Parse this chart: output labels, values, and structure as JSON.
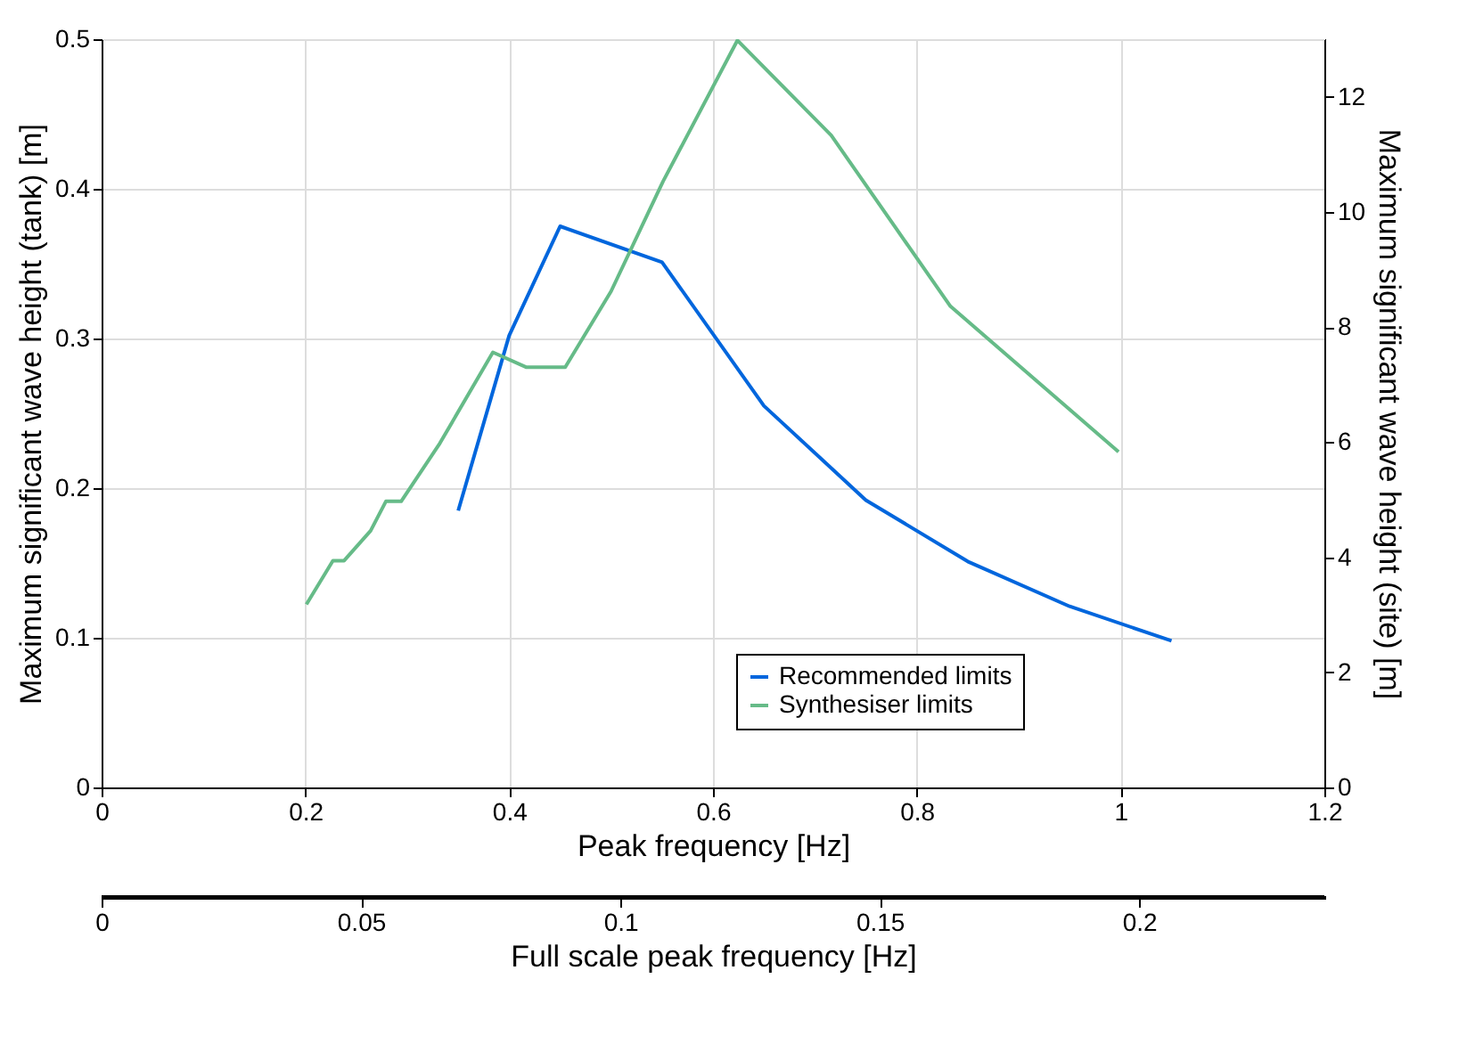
{
  "chart_data": {
    "type": "line",
    "xlabel": "Peak frequency [Hz]",
    "ylabel": "Maximum significant wave height (tank) [m]",
    "y2label": "Maximum significant wave height (site) [m]",
    "x2label": "Full scale peak frequency [Hz]",
    "xlim": [
      0,
      1.2
    ],
    "xticks": [
      0,
      0.2,
      0.4,
      0.6,
      0.8,
      1,
      1.2
    ],
    "ylim": [
      0,
      0.5
    ],
    "yticks": [
      0,
      0.1,
      0.2,
      0.3,
      0.4,
      0.5
    ],
    "y2lim": [
      0,
      13
    ],
    "y2ticks": [
      0,
      2,
      4,
      6,
      8,
      10,
      12
    ],
    "x2lim": [
      0,
      0.2357
    ],
    "x2ticks": [
      0,
      0.05,
      0.1,
      0.15,
      0.2
    ],
    "grid": true,
    "legend": "bottom right",
    "line_style": "solid",
    "marker": "none",
    "series": [
      {
        "name": "Recommended limits",
        "color": "#0066dd",
        "axis": "y",
        "x": [
          0.35,
          0.4,
          0.45,
          0.55,
          0.65,
          0.75,
          0.85,
          0.95,
          1.05
        ],
        "values": [
          0.185,
          0.302,
          0.375,
          0.351,
          0.255,
          0.192,
          0.151,
          0.121,
          0.098
        ]
      },
      {
        "name": "Synthesiser limits",
        "color": "#66bb88",
        "axis": "y2",
        "x": [
          0.201,
          0.227,
          0.238,
          0.264,
          0.279,
          0.294,
          0.332,
          0.384,
          0.417,
          0.455,
          0.5,
          0.551,
          0.624,
          0.716,
          0.833,
          0.998
        ],
        "values": [
          3.18,
          3.94,
          3.94,
          4.46,
          4.97,
          4.97,
          5.98,
          7.56,
          7.3,
          7.3,
          8.62,
          10.53,
          12.98,
          11.33,
          8.36,
          5.83
        ]
      }
    ]
  }
}
